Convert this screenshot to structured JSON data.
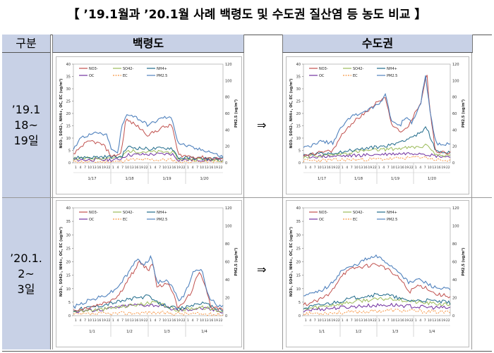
{
  "title": "【 ’19.1월과 ’20.1월 사례 백령도 및 수도권 질산염 등 농도 비교 】",
  "header": {
    "gubun": "구분",
    "baengnyeong": "백령도",
    "sudogwon": "수도권"
  },
  "rows": [
    {
      "label_lines": [
        "’19.1",
        "18~",
        "19일"
      ]
    },
    {
      "label_lines": [
        "’20.1.",
        "2~",
        "3일"
      ]
    }
  ],
  "arrow": "⇒",
  "legend": [
    "NO3-",
    "SO42-",
    "NH4+",
    "OC",
    "EC",
    "PM2.5"
  ],
  "colors": {
    "NO3-": "#c0504d",
    "SO42-": "#9bbb59",
    "NH4+": "#1f6a8a",
    "OC": "#7030a0",
    "EC": "#f79646",
    "PM2.5": "#4f81bd",
    "header_bg": "#c8d1e6"
  },
  "axis": {
    "left_ticks": [
      "40",
      "35",
      "30",
      "25",
      "20",
      "15",
      "10",
      "5",
      "0"
    ],
    "right_ticks": [
      "120",
      "100",
      "80",
      "60",
      "40",
      "20",
      "0"
    ],
    "left_label": "NO3-, SO42-, NH4+, OC, EC (ug/m³)",
    "right_label": "PM2.5 (ug/m³)",
    "hour_ticks": "1 4 7 10 13 16 19 22"
  },
  "charts": {
    "c1": {
      "dates": [
        "1/17",
        "1/18",
        "1/19",
        "1/20"
      ]
    },
    "c2": {
      "dates": [
        "1/17",
        "1/18",
        "1/19",
        "1/20"
      ]
    },
    "c3": {
      "dates": [
        "1/1",
        "1/2",
        "1/3",
        "1/4"
      ]
    },
    "c4": {
      "dates": [
        "1/1",
        "1/2",
        "1/3",
        "1/4"
      ]
    }
  }
}
